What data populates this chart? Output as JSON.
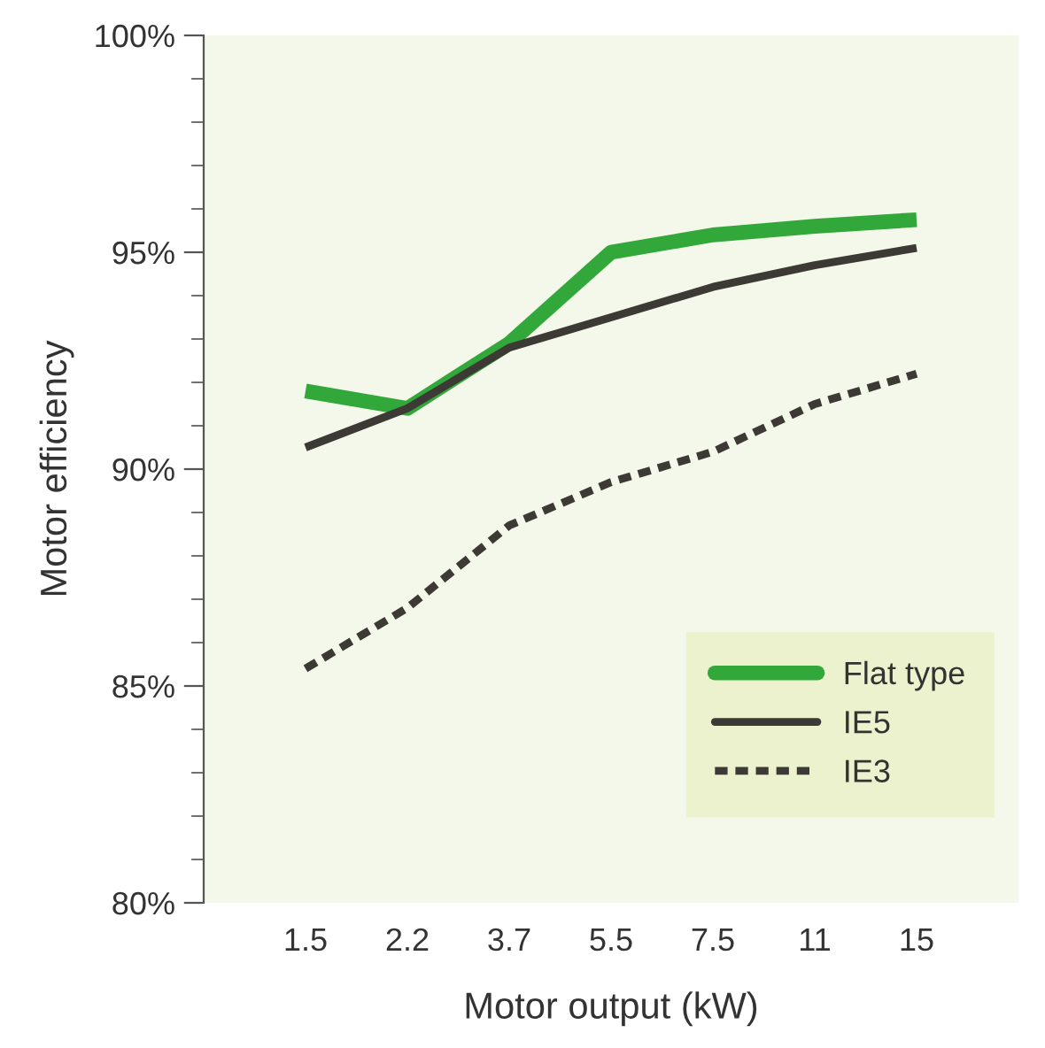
{
  "chart_data": {
    "type": "line",
    "xlabel": "Motor output (kW)",
    "ylabel": "Motor efficiency",
    "categories": [
      "1.5",
      "2.2",
      "3.7",
      "5.5",
      "7.5",
      "11",
      "15"
    ],
    "series": [
      {
        "name": "Flat type",
        "color": "#33a83a",
        "values": [
          91.8,
          91.4,
          92.9,
          95.0,
          95.4,
          95.6,
          95.75
        ],
        "line_style": "solid"
      },
      {
        "name": "IE5",
        "color": "#3d3935",
        "values": [
          90.5,
          91.4,
          92.8,
          93.5,
          94.2,
          94.7,
          95.1
        ],
        "line_style": "solid"
      },
      {
        "name": "IE3",
        "color": "#3d3935",
        "values": [
          85.4,
          86.8,
          88.7,
          89.7,
          90.4,
          91.5,
          92.2
        ],
        "line_style": "dashed"
      }
    ],
    "ylim": [
      80,
      100
    ],
    "yticks": [
      {
        "value": 80,
        "label": "80%"
      },
      {
        "value": 85,
        "label": "85%"
      },
      {
        "value": 90,
        "label": "90%"
      },
      {
        "value": 95,
        "label": "95%"
      },
      {
        "value": 100,
        "label": "100%"
      }
    ],
    "grid": false,
    "legend": "bottom right",
    "marker": "none"
  }
}
